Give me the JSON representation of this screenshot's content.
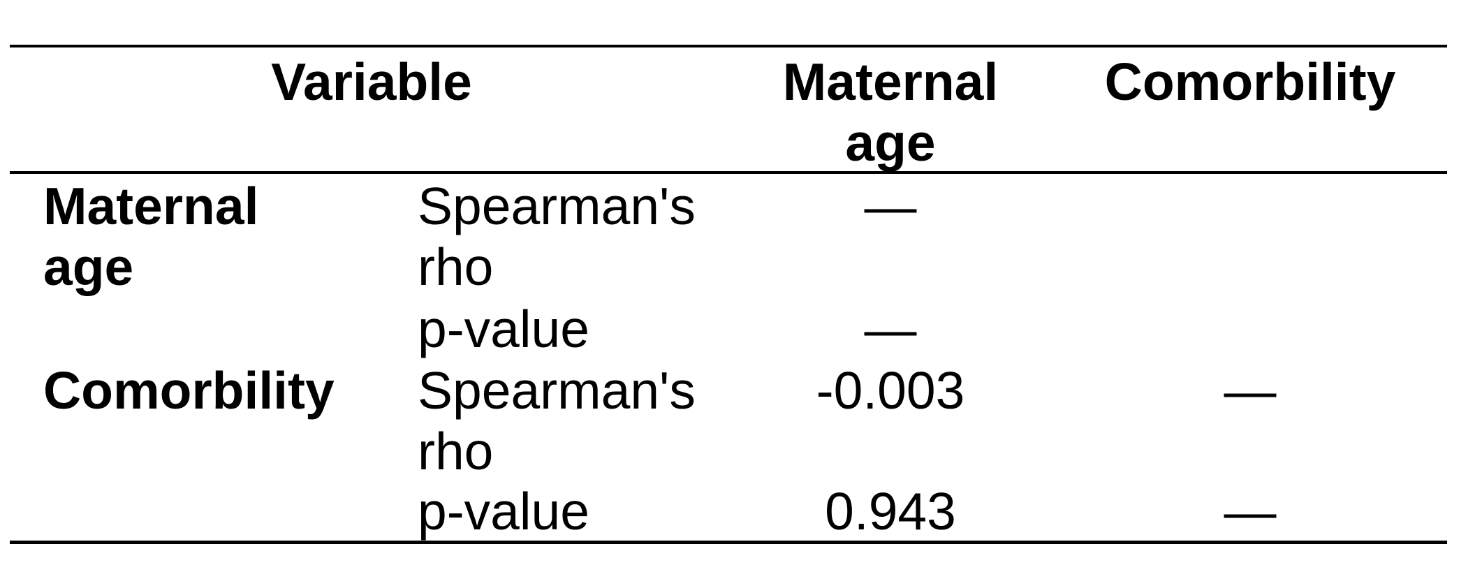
{
  "table": {
    "header": [
      "Variable",
      "Maternal age",
      "Comorbility"
    ],
    "groups": [
      {
        "label": "Maternal age",
        "rows": [
          {
            "stat": "Spearman's rho",
            "values": [
              "—",
              null
            ]
          },
          {
            "stat": "p-value",
            "values": [
              "—",
              null
            ]
          }
        ]
      },
      {
        "label": "Comorbility",
        "rows": [
          {
            "stat": "Spearman's rho",
            "values": [
              "-0.003",
              "—"
            ]
          },
          {
            "stat": "p-value",
            "values": [
              "0.943",
              "—"
            ]
          }
        ]
      }
    ]
  }
}
